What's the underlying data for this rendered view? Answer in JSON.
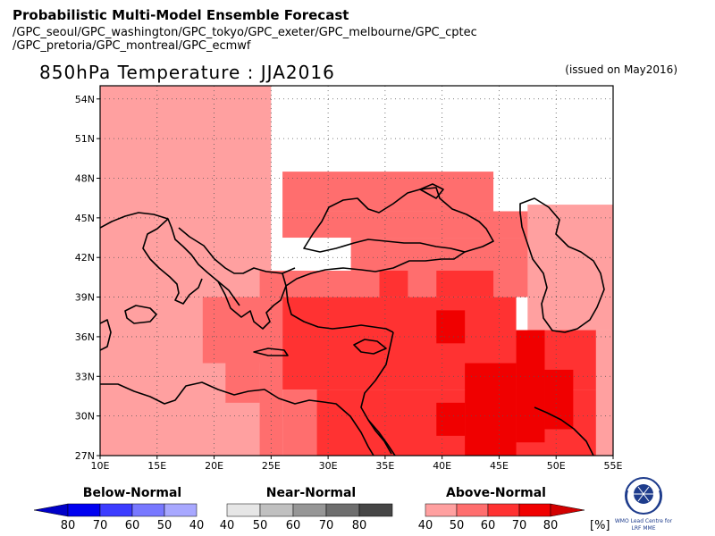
{
  "header": {
    "title": "Probabilistic Multi-Model Ensemble Forecast",
    "models_line1": "/GPC_seoul/GPC_washington/GPC_tokyo/GPC_exeter/GPC_melbourne/GPC_cptec",
    "models_line2": "/GPC_pretoria/GPC_montreal/GPC_ecmwf"
  },
  "map": {
    "title": "850hPa Temperature : JJA2016",
    "issued": "(issued on May2016)",
    "lon_range": [
      10,
      55
    ],
    "lat_range": [
      27,
      55
    ],
    "lon_ticks": [
      "10E",
      "15E",
      "20E",
      "25E",
      "30E",
      "35E",
      "40E",
      "45E",
      "50E",
      "55E"
    ],
    "lat_ticks": [
      "27N",
      "30N",
      "33N",
      "36N",
      "39N",
      "42N",
      "45N",
      "48N",
      "51N",
      "54N"
    ],
    "gridlines": true
  },
  "legend": {
    "below": {
      "label": "Below-Normal",
      "values": [
        "80",
        "70",
        "60",
        "50",
        "40"
      ],
      "colors": [
        "#0000c8",
        "#0000f0",
        "#3c3cff",
        "#7878ff",
        "#a8a8ff"
      ]
    },
    "near": {
      "label": "Near-Normal",
      "values": [
        "40",
        "50",
        "60",
        "70",
        "80"
      ],
      "colors": [
        "#e6e6e6",
        "#c0c0c0",
        "#969696",
        "#6e6e6e",
        "#464646"
      ]
    },
    "above": {
      "label": "Above-Normal",
      "values": [
        "40",
        "50",
        "60",
        "70",
        "80"
      ],
      "colors": [
        "#ffa0a0",
        "#ff6e6e",
        "#ff3232",
        "#f00000",
        "#d20000"
      ],
      "unit": "[%]"
    }
  },
  "logo": {
    "text_line1": "WMO Lead Centre for",
    "text_line2": "LRF MME"
  },
  "chart_data": {
    "type": "heatmap",
    "category": "Above-Normal",
    "default_value": 40,
    "cells": [
      {
        "lon": [
          10,
          25
        ],
        "lat": [
          27,
          55
        ],
        "value": 40
      },
      {
        "lon": [
          26,
          44.5
        ],
        "lat": [
          45.5,
          48.5
        ],
        "value": 50
      },
      {
        "lon": [
          26,
          49
        ],
        "lat": [
          43.5,
          45.5
        ],
        "value": 50
      },
      {
        "lon": [
          32,
          53
        ],
        "lat": [
          41,
          43.5
        ],
        "value": 50
      },
      {
        "lon": [
          24,
          53.5
        ],
        "lat": [
          39,
          41
        ],
        "value": 50
      },
      {
        "lon": [
          19,
          26
        ],
        "lat": [
          34,
          39
        ],
        "value": 50
      },
      {
        "lon": [
          21,
          24
        ],
        "lat": [
          31,
          34
        ],
        "value": 50
      },
      {
        "lon": [
          24,
          26
        ],
        "lat": [
          27,
          34
        ],
        "value": 50
      },
      {
        "lon": [
          26,
          29
        ],
        "lat": [
          27,
          32
        ],
        "value": 50
      },
      {
        "lon": [
          53.5,
          55
        ],
        "lat": [
          27,
          36.5
        ],
        "value": 40
      },
      {
        "lon": [
          47.5,
          55
        ],
        "lat": [
          36.5,
          46
        ],
        "value": 40
      },
      {
        "lon": [
          34.5,
          37
        ],
        "lat": [
          39,
          41
        ],
        "value": 60
      },
      {
        "lon": [
          39.5,
          44.5
        ],
        "lat": [
          39,
          41
        ],
        "value": 60
      },
      {
        "lon": [
          26,
          46.5
        ],
        "lat": [
          32,
          39
        ],
        "value": 60
      },
      {
        "lon": [
          29,
          53.5
        ],
        "lat": [
          27,
          32
        ],
        "value": 60
      },
      {
        "lon": [
          46.5,
          53.5
        ],
        "lat": [
          32,
          36.5
        ],
        "value": 60
      },
      {
        "lon": [
          39.5,
          42
        ],
        "lat": [
          35.5,
          38
        ],
        "value": 70
      },
      {
        "lon": [
          42,
          46.5
        ],
        "lat": [
          27,
          34
        ],
        "value": 70
      },
      {
        "lon": [
          46.5,
          49
        ],
        "lat": [
          28,
          36.5
        ],
        "value": 70
      },
      {
        "lon": [
          49,
          51.5
        ],
        "lat": [
          29,
          33.5
        ],
        "value": 70
      },
      {
        "lon": [
          39.5,
          42
        ],
        "lat": [
          28.5,
          31
        ],
        "value": 70
      }
    ]
  }
}
